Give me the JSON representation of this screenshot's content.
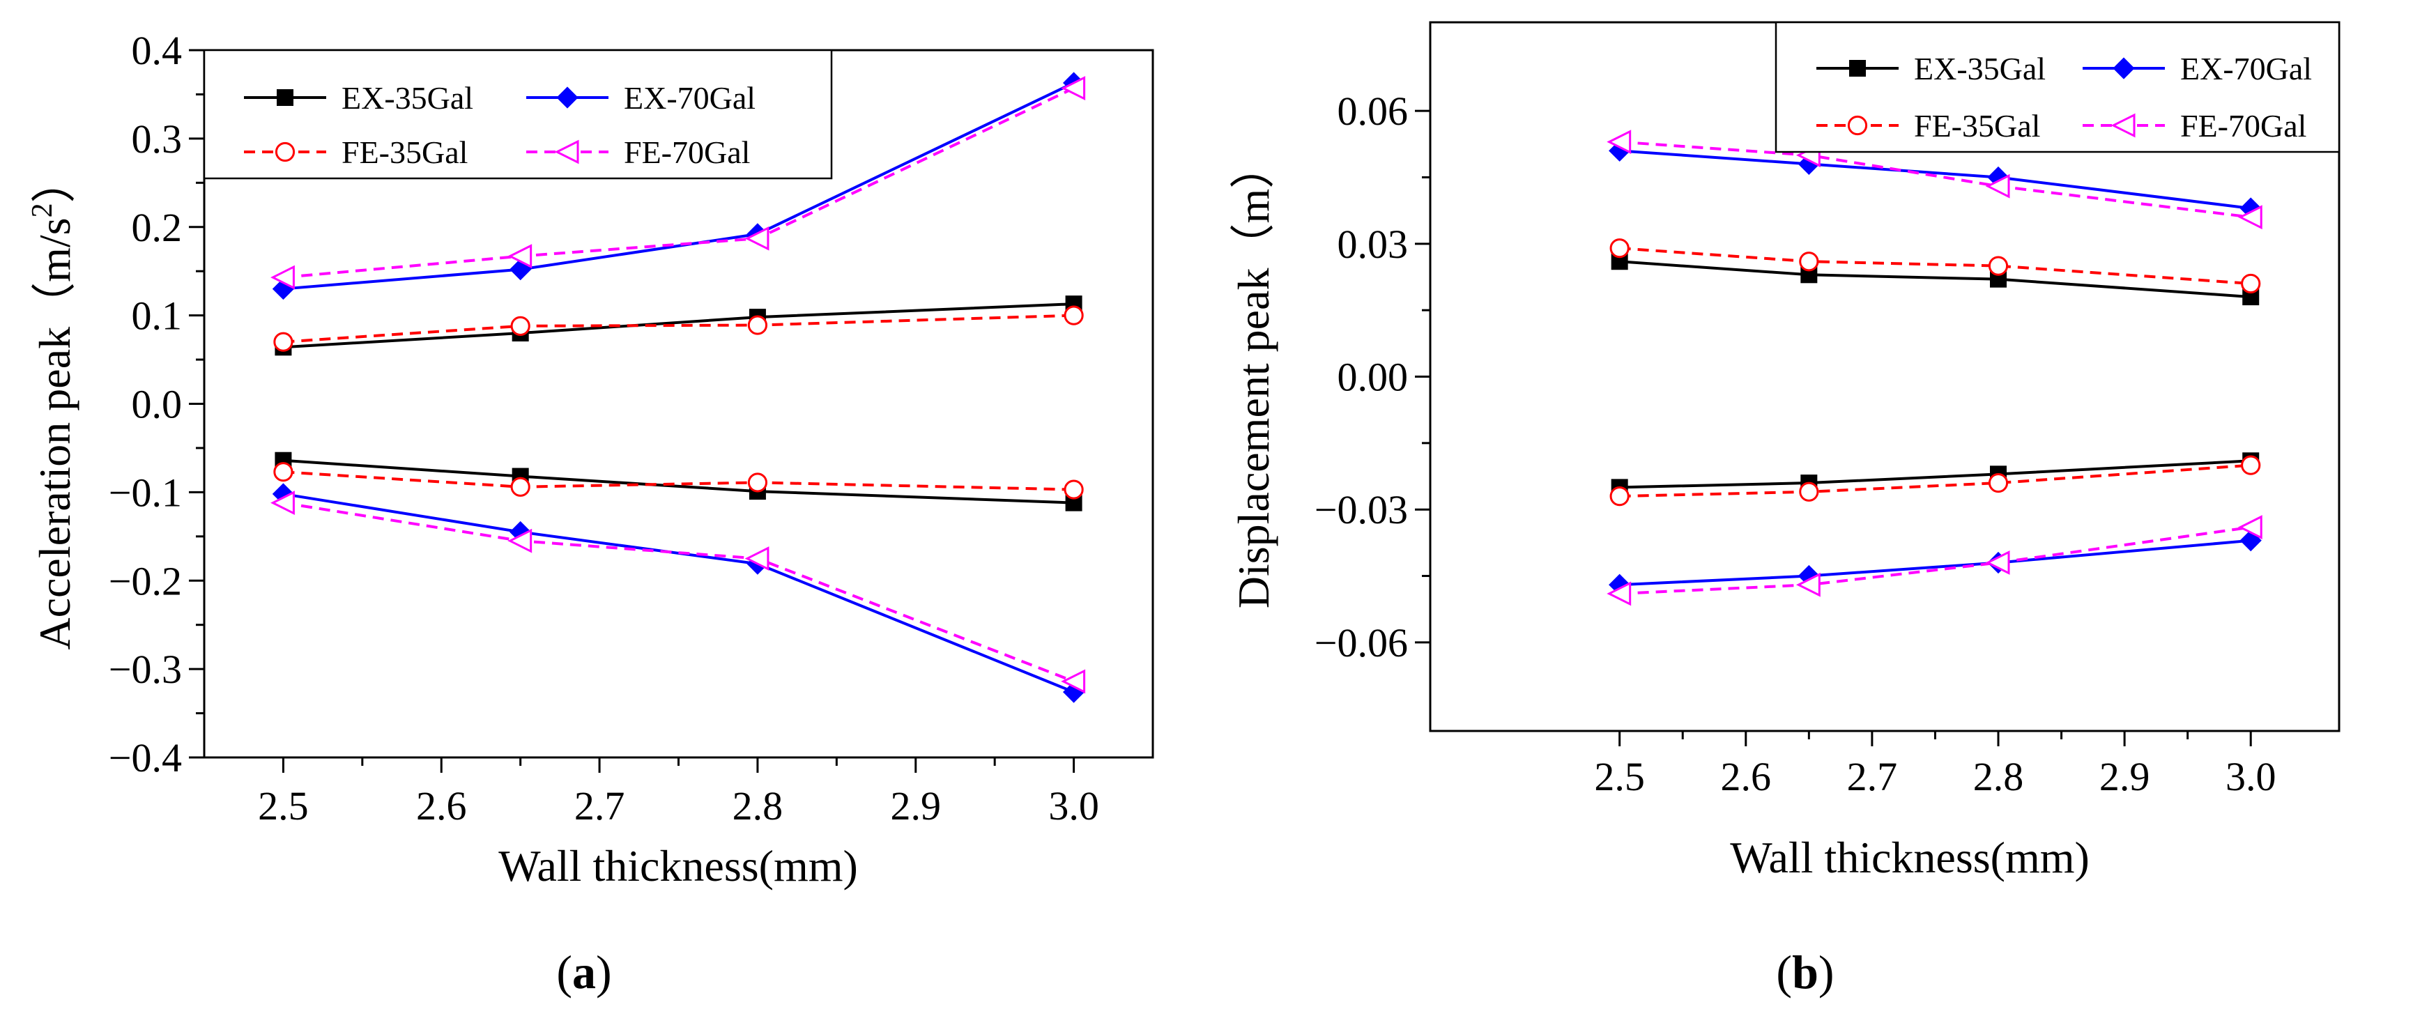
{
  "chart_data": [
    {
      "type": "line",
      "panel_label": "a",
      "xlabel": "Wall thickness(mm)",
      "ylabel": "Acceleration peak（m/s²）",
      "ylabel_main": "Acceleration peak（m/s",
      "ylabel_sup": "2",
      "ylabel_close": "）",
      "xlim": [
        2.45,
        3.05
      ],
      "ylim": [
        -0.4,
        0.4
      ],
      "xticks": [
        2.5,
        2.6,
        2.7,
        2.8,
        2.9,
        3.0
      ],
      "xtick_labels": [
        "2.5",
        "2.6",
        "2.7",
        "2.8",
        "2.9",
        "3.0"
      ],
      "yticks": [
        -0.4,
        -0.3,
        -0.2,
        -0.1,
        0.0,
        0.1,
        0.2,
        0.3,
        0.4
      ],
      "ytick_labels": [
        "−0.4",
        "−0.3",
        "−0.2",
        "−0.1",
        "0.0",
        "0.1",
        "0.2",
        "0.3",
        "0.4"
      ],
      "legend_position": "top-left",
      "x": [
        2.5,
        2.65,
        2.8,
        3.0
      ],
      "series": [
        {
          "name": "EX-35Gal",
          "color": "#000000",
          "dash": "solid",
          "marker": "square",
          "positive": [
            0.064,
            0.08,
            0.098,
            0.113
          ],
          "negative": [
            -0.064,
            -0.082,
            -0.099,
            -0.112
          ]
        },
        {
          "name": "EX-70Gal",
          "color": "#0000ff",
          "dash": "solid",
          "marker": "diamond",
          "positive": [
            0.13,
            0.152,
            0.192,
            0.363
          ],
          "negative": [
            -0.102,
            -0.145,
            -0.181,
            -0.326
          ]
        },
        {
          "name": "FE-35Gal",
          "color": "#ff0000",
          "dash": "dashed",
          "marker": "circle",
          "positive": [
            0.07,
            0.088,
            0.089,
            0.1
          ],
          "negative": [
            -0.077,
            -0.094,
            -0.089,
            -0.097
          ]
        },
        {
          "name": "FE-70Gal",
          "color": "#ff00ff",
          "dash": "dashed",
          "marker": "triangle-left",
          "positive": [
            0.143,
            0.167,
            0.187,
            0.357
          ],
          "negative": [
            -0.112,
            -0.155,
            -0.175,
            -0.314
          ]
        }
      ]
    },
    {
      "type": "line",
      "panel_label": "b",
      "xlabel": "Wall thickness(mm)",
      "ylabel": "Displacement peak（m）",
      "xlim": [
        2.35,
        3.07
      ],
      "ylim": [
        -0.08,
        0.08
      ],
      "xticks": [
        2.5,
        2.6,
        2.7,
        2.8,
        2.9,
        3.0
      ],
      "xtick_labels": [
        "2.5",
        "2.6",
        "2.7",
        "2.8",
        "2.9",
        "3.0"
      ],
      "yticks": [
        -0.06,
        -0.03,
        0.0,
        0.03,
        0.06
      ],
      "ytick_labels": [
        "−0.06",
        "−0.03",
        "0.00",
        "0.03",
        "0.06"
      ],
      "legend_position": "top-right",
      "x": [
        2.5,
        2.65,
        2.8,
        3.0
      ],
      "series": [
        {
          "name": "EX-35Gal",
          "color": "#000000",
          "dash": "solid",
          "marker": "square",
          "positive": [
            0.026,
            0.023,
            0.022,
            0.018
          ],
          "negative": [
            -0.025,
            -0.024,
            -0.022,
            -0.019
          ]
        },
        {
          "name": "EX-70Gal",
          "color": "#0000ff",
          "dash": "solid",
          "marker": "diamond",
          "positive": [
            0.051,
            0.048,
            0.045,
            0.038
          ],
          "negative": [
            -0.047,
            -0.045,
            -0.042,
            -0.037
          ]
        },
        {
          "name": "FE-35Gal",
          "color": "#ff0000",
          "dash": "dashed",
          "marker": "circle",
          "positive": [
            0.029,
            0.026,
            0.025,
            0.021
          ],
          "negative": [
            -0.027,
            -0.026,
            -0.024,
            -0.02
          ]
        },
        {
          "name": "FE-70Gal",
          "color": "#ff00ff",
          "dash": "dashed",
          "marker": "triangle-left",
          "positive": [
            0.053,
            0.05,
            0.043,
            0.036
          ],
          "negative": [
            -0.049,
            -0.047,
            -0.042,
            -0.034
          ]
        }
      ]
    }
  ]
}
